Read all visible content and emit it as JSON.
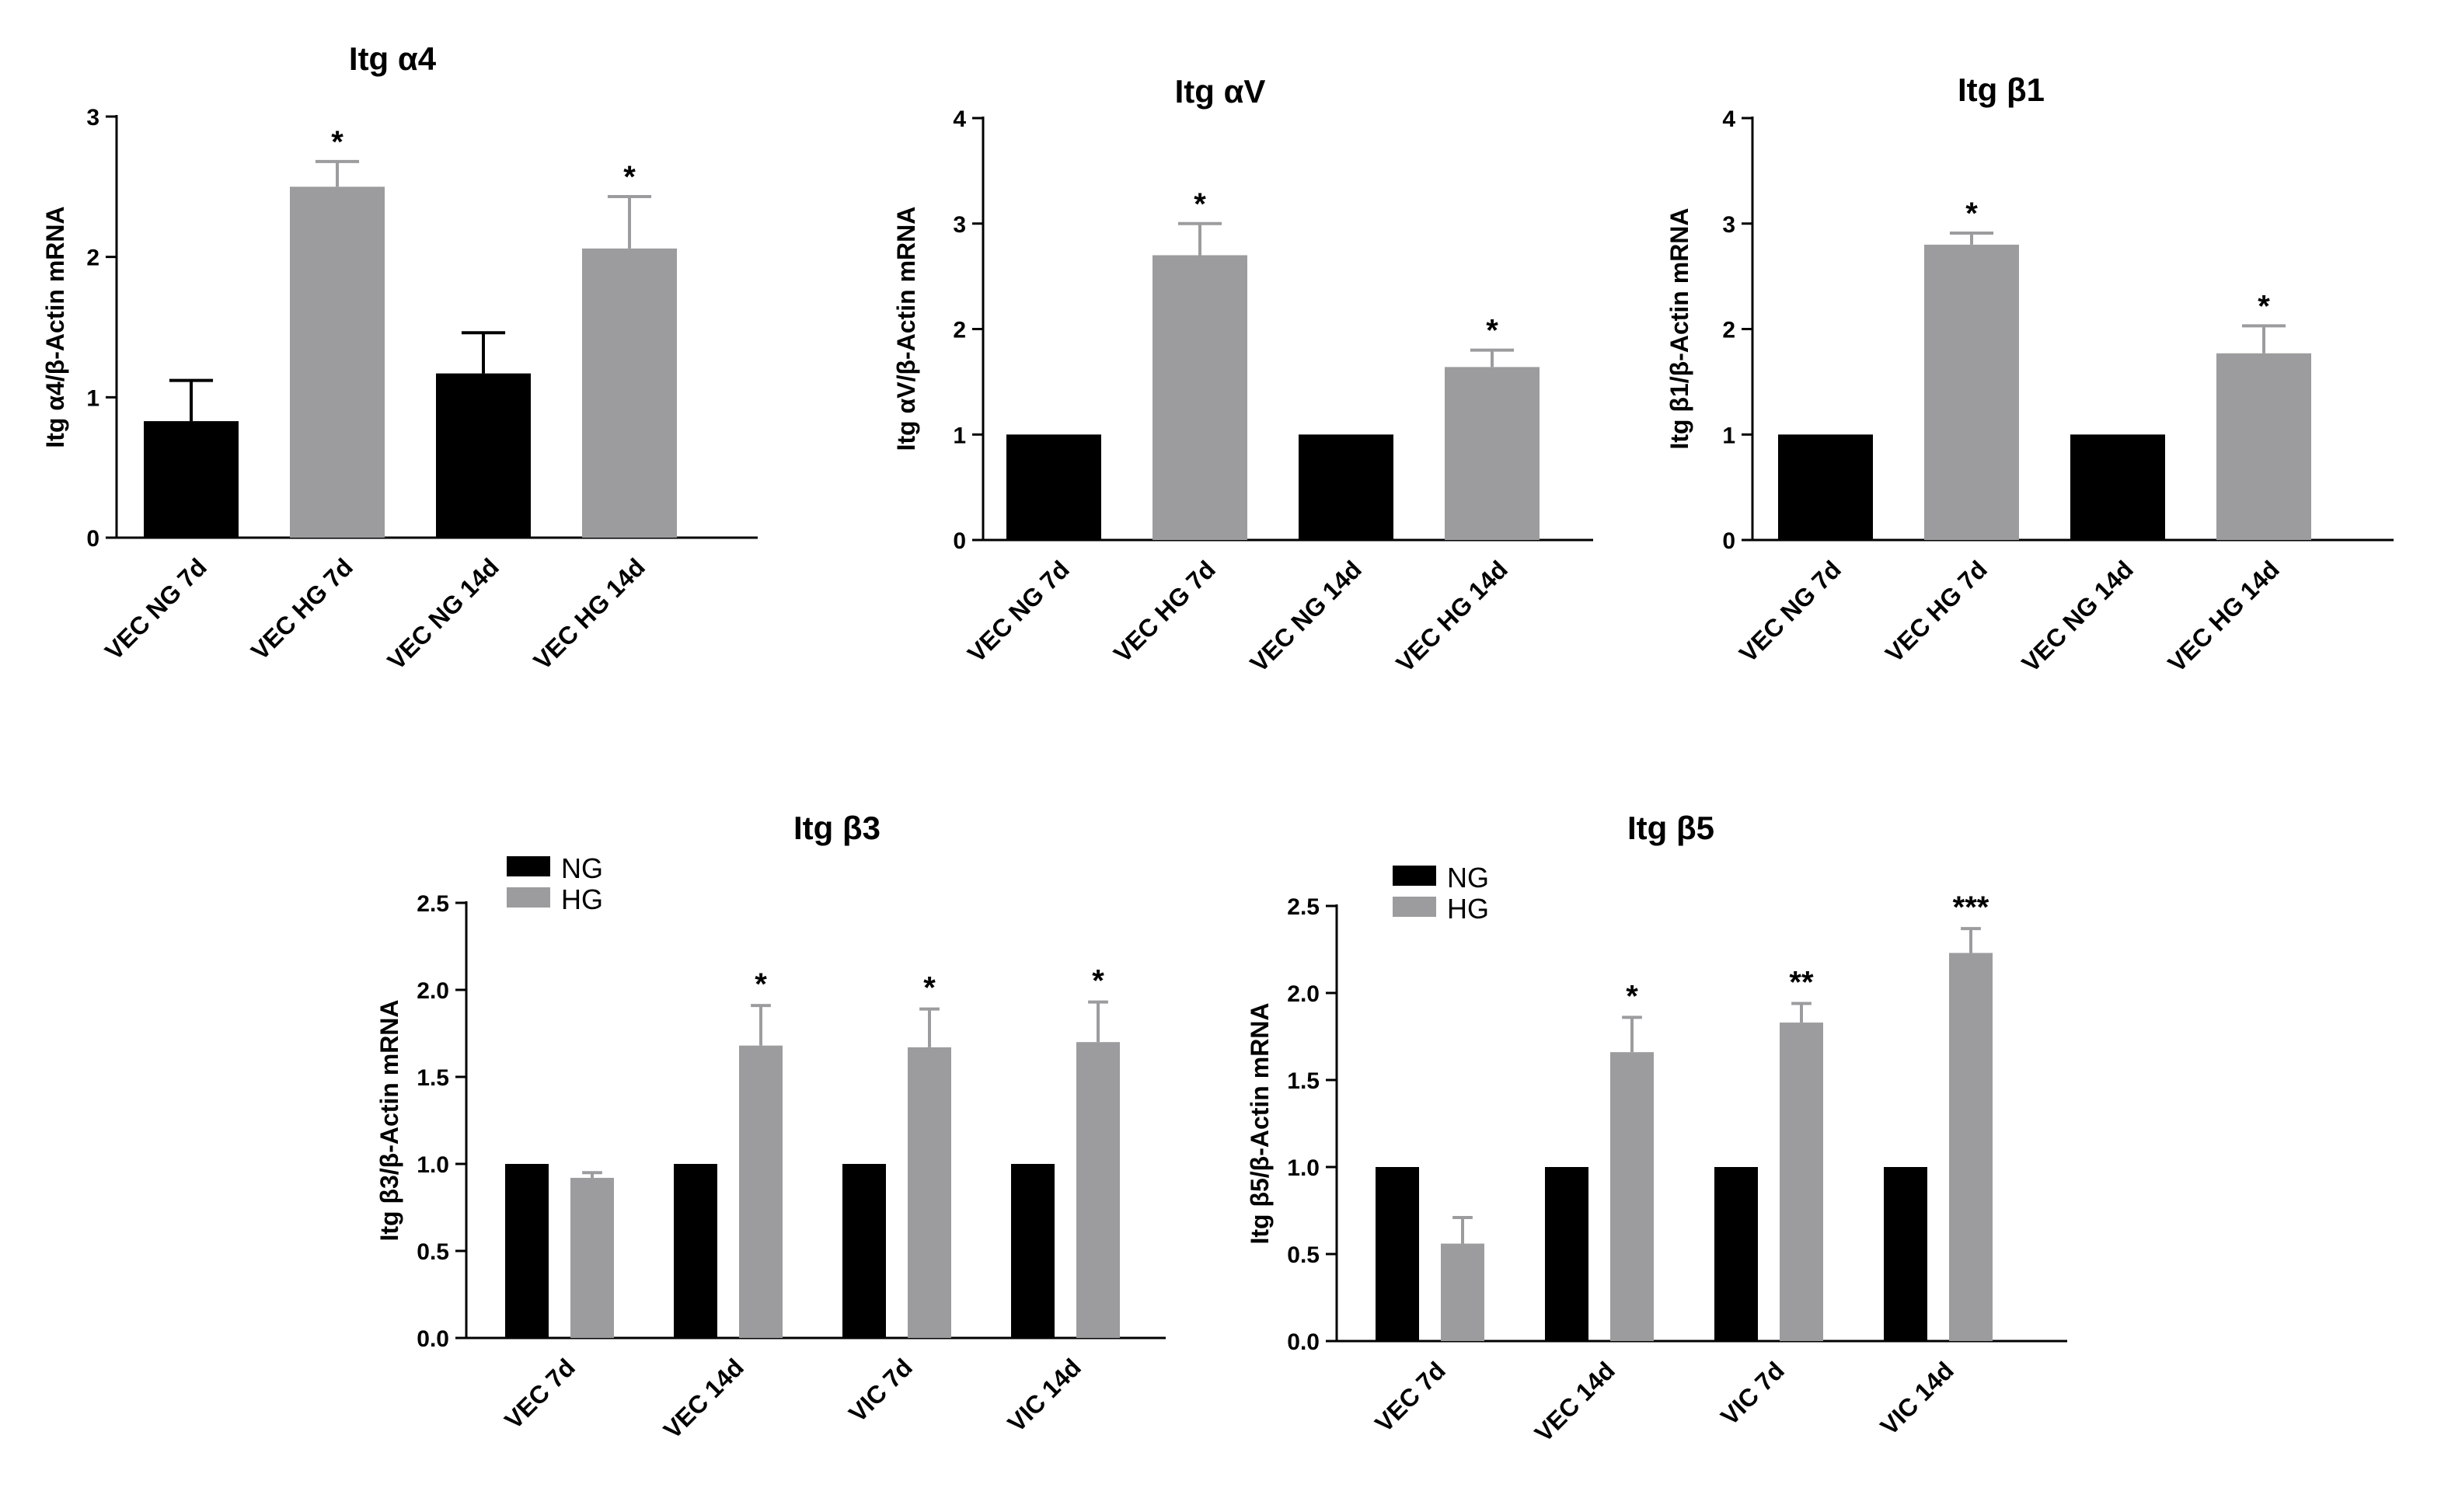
{
  "colors": {
    "ng": "#000000",
    "hg": "#9c9c9f",
    "axis": "#000000"
  },
  "chart_data": [
    {
      "type": "bar",
      "title": "Itg α4",
      "ylabel": "Itg α4/β-Actin mRNA",
      "xlabel": "",
      "ylim": [
        0,
        3
      ],
      "yticks": [
        "0",
        "1",
        "2",
        "3"
      ],
      "categories": [
        "VEC NG 7d",
        "VEC HG 7d",
        "VEC NG 14d",
        "VEC HG 14d"
      ],
      "values": [
        0.83,
        2.5,
        1.17,
        2.06
      ],
      "errors": [
        0.29,
        0.18,
        0.29,
        0.37
      ],
      "groups": [
        "NG",
        "HG",
        "NG",
        "HG"
      ],
      "annotations": [
        "",
        "*",
        "",
        "*"
      ]
    },
    {
      "type": "bar",
      "title": "Itg αV",
      "ylabel": "Itg αV/β-Actin mRNA",
      "xlabel": "",
      "ylim": [
        0,
        4
      ],
      "yticks": [
        "0",
        "1",
        "2",
        "3",
        "4"
      ],
      "categories": [
        "VEC NG 7d",
        "VEC HG 7d",
        "VEC NG 14d",
        "VEC HG 14d"
      ],
      "values": [
        1.0,
        2.7,
        1.0,
        1.64
      ],
      "errors": [
        0,
        0.3,
        0,
        0.16
      ],
      "groups": [
        "NG",
        "HG",
        "NG",
        "HG"
      ],
      "annotations": [
        "",
        "*",
        "",
        "*"
      ]
    },
    {
      "type": "bar",
      "title": "Itg β1",
      "ylabel": "Itg β1/β-Actin mRNA",
      "xlabel": "",
      "ylim": [
        0,
        4
      ],
      "yticks": [
        "0",
        "1",
        "2",
        "3",
        "4"
      ],
      "categories": [
        "VEC NG 7d",
        "VEC HG 7d",
        "VEC NG 14d",
        "VEC HG 14d"
      ],
      "values": [
        1.0,
        2.8,
        1.0,
        1.77
      ],
      "errors": [
        0,
        0.11,
        0,
        0.26
      ],
      "groups": [
        "NG",
        "HG",
        "NG",
        "HG"
      ],
      "annotations": [
        "",
        "*",
        "",
        "*"
      ]
    },
    {
      "type": "bar",
      "title": "Itg β3",
      "ylabel": "Itg β3/β-Actin mRNA",
      "xlabel": "",
      "ylim": [
        0,
        2.5
      ],
      "yticks": [
        "0.0",
        "0.5",
        "1.0",
        "1.5",
        "2.0",
        "2.5"
      ],
      "categories": [
        "VEC 7d",
        "VEC 14d",
        "VIC 7d",
        "VIC 14d"
      ],
      "legend": [
        "NG",
        "HG"
      ],
      "series": [
        {
          "name": "NG",
          "values": [
            1.0,
            1.0,
            1.0,
            1.0
          ],
          "errors": [
            0,
            0,
            0,
            0
          ],
          "annotations": [
            "",
            "",
            "",
            ""
          ]
        },
        {
          "name": "HG",
          "values": [
            0.92,
            1.68,
            1.67,
            1.7
          ],
          "errors": [
            0.03,
            0.23,
            0.22,
            0.23
          ],
          "annotations": [
            "",
            "*",
            "*",
            "*"
          ]
        }
      ]
    },
    {
      "type": "bar",
      "title": "Itg β5",
      "ylabel": "Itg β5/β-Actin mRNA",
      "xlabel": "",
      "ylim": [
        0,
        2.5
      ],
      "yticks": [
        "0.0",
        "0.5",
        "1.0",
        "1.5",
        "2.0",
        "2.5"
      ],
      "categories": [
        "VEC 7d",
        "VEC 14d",
        "VIC 7d",
        "VIC 14d"
      ],
      "legend": [
        "NG",
        "HG"
      ],
      "series": [
        {
          "name": "NG",
          "values": [
            1.0,
            1.0,
            1.0,
            1.0
          ],
          "errors": [
            0,
            0,
            0,
            0
          ],
          "annotations": [
            "",
            "",
            "",
            ""
          ]
        },
        {
          "name": "HG",
          "values": [
            0.56,
            1.66,
            1.83,
            2.23
          ],
          "errors": [
            0.15,
            0.2,
            0.11,
            0.14
          ],
          "annotations": [
            "",
            "*",
            "**",
            "***"
          ]
        }
      ]
    }
  ]
}
